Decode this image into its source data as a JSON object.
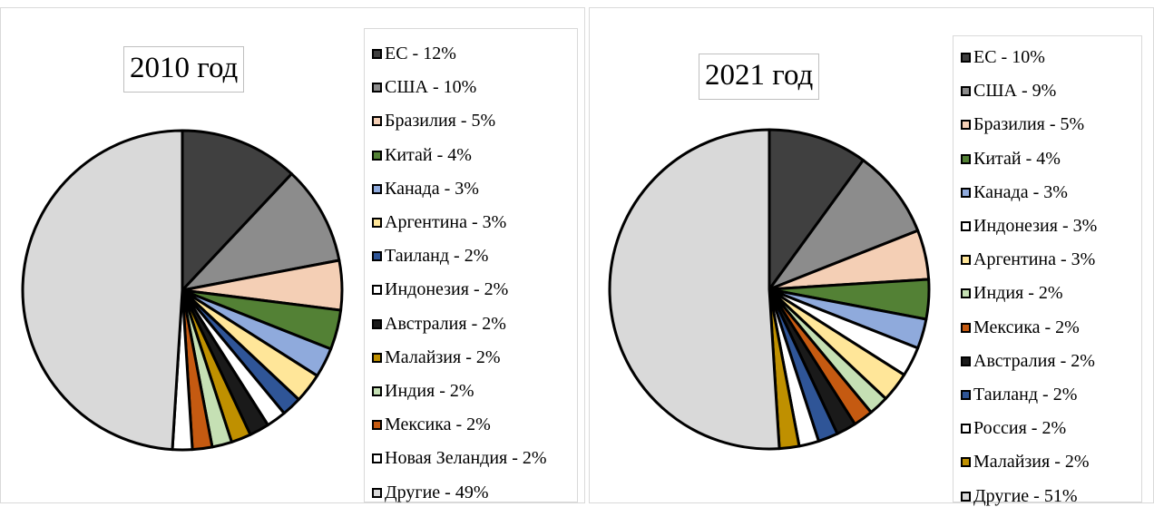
{
  "chart_data": [
    {
      "type": "pie",
      "title": "2010 год",
      "slices": [
        {
          "label": "ЕС - 12%",
          "value": 12,
          "color": "#404040"
        },
        {
          "label": "США - 10%",
          "value": 10,
          "color": "#8c8c8c"
        },
        {
          "label": "Бразилия - 5%",
          "value": 5,
          "color": "#f4cfb5"
        },
        {
          "label": "Китай - 4%",
          "value": 4,
          "color": "#538135"
        },
        {
          "label": "Канада - 3%",
          "value": 3,
          "color": "#8faadc"
        },
        {
          "label": "Аргентина - 3%",
          "value": 3,
          "color": "#ffe699"
        },
        {
          "label": "Таиланд - 2%",
          "value": 2,
          "color": "#2f5597"
        },
        {
          "label": "Индонезия - 2%",
          "value": 2,
          "color": "#ffffff"
        },
        {
          "label": "Австралия - 2%",
          "value": 2,
          "color": "#1a1a1a"
        },
        {
          "label": "Малайзия - 2%",
          "value": 2,
          "color": "#bf9000"
        },
        {
          "label": "Индия - 2%",
          "value": 2,
          "color": "#c5e0b4"
        },
        {
          "label": "Мексика - 2%",
          "value": 2,
          "color": "#c55a11"
        },
        {
          "label": "Новая Зеландия - 2%",
          "value": 2,
          "color": "#ffffff"
        },
        {
          "label": "Другие - 49%",
          "value": 49,
          "color": "#d9d9d9"
        }
      ],
      "legend_position": "right"
    },
    {
      "type": "pie",
      "title": "2021 год",
      "slices": [
        {
          "label": "ЕС - 10%",
          "value": 10,
          "color": "#404040"
        },
        {
          "label": "США - 9%",
          "value": 9,
          "color": "#8c8c8c"
        },
        {
          "label": "Бразилия - 5%",
          "value": 5,
          "color": "#f4cfb5"
        },
        {
          "label": "Китай - 4%",
          "value": 4,
          "color": "#538135"
        },
        {
          "label": "Канада - 3%",
          "value": 3,
          "color": "#8faadc"
        },
        {
          "label": "Индонезия - 3%",
          "value": 3,
          "color": "#ffffff"
        },
        {
          "label": "Аргентина - 3%",
          "value": 3,
          "color": "#ffe699"
        },
        {
          "label": "Индия - 2%",
          "value": 2,
          "color": "#c5e0b4"
        },
        {
          "label": "Мексика - 2%",
          "value": 2,
          "color": "#c55a11"
        },
        {
          "label": "Австралия - 2%",
          "value": 2,
          "color": "#1a1a1a"
        },
        {
          "label": "Таиланд - 2%",
          "value": 2,
          "color": "#2f5597"
        },
        {
          "label": "Россия - 2%",
          "value": 2,
          "color": "#ffffff"
        },
        {
          "label": "Малайзия - 2%",
          "value": 2,
          "color": "#bf9000"
        },
        {
          "label": "Другие - 51%",
          "value": 51,
          "color": "#d9d9d9"
        }
      ],
      "legend_position": "right"
    }
  ]
}
